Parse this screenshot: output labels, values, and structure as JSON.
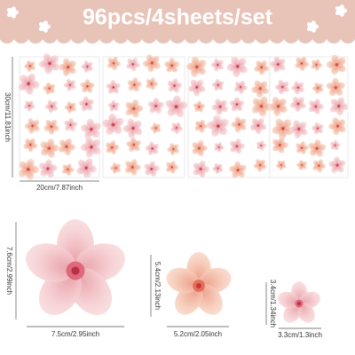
{
  "header": {
    "title": "96pcs/4sheets/set"
  },
  "sheets": {
    "height_label": "30cm/11.81inch",
    "width_label": "20cm/7.87inch"
  },
  "flowers": [
    {
      "height_label": "7.6cm/2.99inch",
      "width_label": "7.5cm/2.95inch"
    },
    {
      "height_label": "5.4cm/2.13inch",
      "width_label": "5.2cm/2.05inch"
    },
    {
      "height_label": "3.4cm/1.34inch",
      "width_label": "3.3cm/1.3inch"
    }
  ]
}
